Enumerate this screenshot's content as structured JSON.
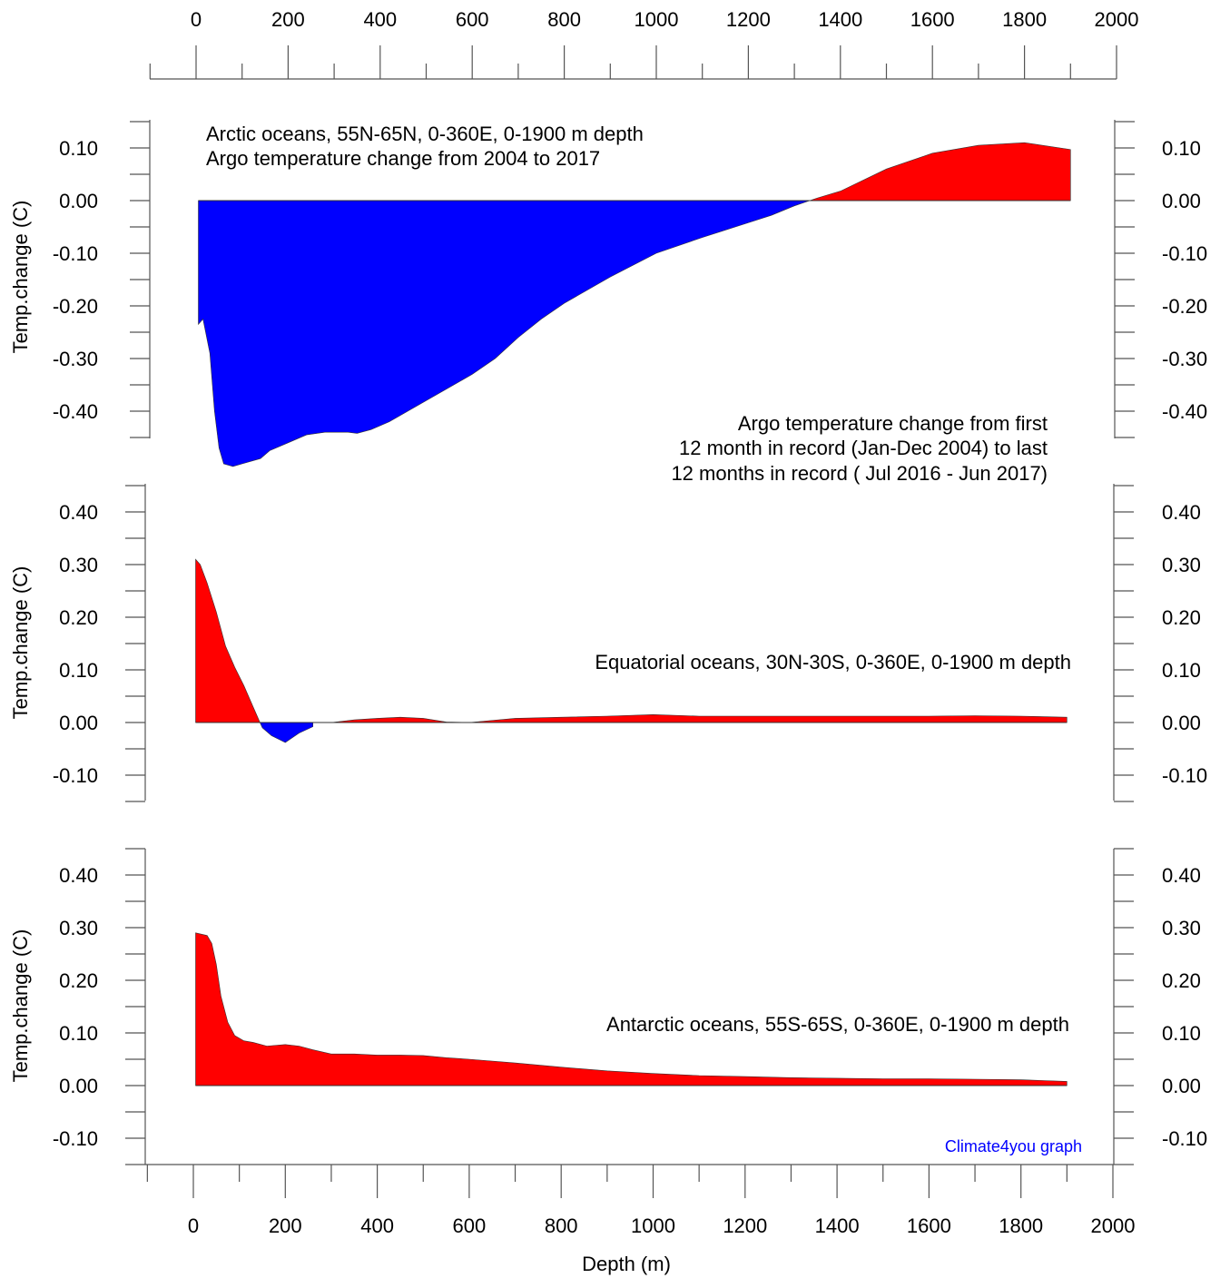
{
  "chart_data": {
    "type": "area",
    "xlabel": "Depth (m)",
    "x_ticks": [
      "0",
      "200",
      "400",
      "600",
      "800",
      "1000",
      "1200",
      "1400",
      "1600",
      "1800",
      "2000"
    ],
    "xlim": [
      -100,
      2000
    ],
    "annotation": [
      "Argo temperature change from first",
      "12 month in record (Jan-Dec 2004) to last",
      "12 months in record ( Jul 2016 - Jun 2017)"
    ],
    "credit": "Climate4you graph",
    "positive_color": "#ff0000",
    "negative_color": "#0000ff",
    "panels": [
      {
        "title_lines": [
          "Arctic oceans, 55N-65N, 0-360E, 0-1900 m depth",
          "Argo temperature change from 2004 to 2017"
        ],
        "ylabel": "Temp.change (C)",
        "ylim": [
          -0.45,
          0.15
        ],
        "y_ticks_left": [
          "0.10",
          "0.00",
          "-0.10",
          "-0.20",
          "-0.30",
          "-0.40"
        ],
        "y_ticks_right": [
          "0.10",
          "0.00",
          "-0.10",
          "-0.20",
          "-0.30",
          "-0.40"
        ],
        "x": [
          5,
          15,
          30,
          40,
          50,
          60,
          80,
          100,
          140,
          160,
          200,
          240,
          280,
          330,
          350,
          380,
          420,
          460,
          500,
          550,
          600,
          650,
          700,
          750,
          800,
          900,
          1000,
          1100,
          1200,
          1250,
          1300,
          1350,
          1400,
          1500,
          1600,
          1700,
          1800,
          1900
        ],
        "values": [
          -0.235,
          -0.225,
          -0.29,
          -0.4,
          -0.47,
          -0.5,
          -0.505,
          -0.5,
          -0.49,
          -0.475,
          -0.46,
          -0.445,
          -0.44,
          -0.44,
          -0.442,
          -0.435,
          -0.42,
          -0.4,
          -0.38,
          -0.355,
          -0.33,
          -0.3,
          -0.26,
          -0.225,
          -0.195,
          -0.145,
          -0.1,
          -0.07,
          -0.042,
          -0.028,
          -0.01,
          0.005,
          0.018,
          0.06,
          0.09,
          0.105,
          0.11,
          0.097
        ]
      },
      {
        "title_lines": [
          "Equatorial oceans, 30N-30S, 0-360E, 0-1900 m depth"
        ],
        "ylabel": "Temp.change (C)",
        "ylim": [
          -0.15,
          0.45
        ],
        "y_ticks_left": [
          "0.40",
          "0.30",
          "0.20",
          "0.10",
          "0.00",
          "-0.10"
        ],
        "y_ticks_right": [
          "0.40",
          "0.30",
          "0.20",
          "0.10",
          "0.00",
          "-0.10"
        ],
        "x": [
          5,
          15,
          30,
          50,
          70,
          90,
          110,
          130,
          150,
          170,
          200,
          230,
          260,
          300,
          350,
          400,
          450,
          500,
          550,
          600,
          700,
          800,
          900,
          1000,
          1100,
          1200,
          1300,
          1400,
          1500,
          1600,
          1700,
          1800,
          1900
        ],
        "values": [
          0.31,
          0.3,
          0.265,
          0.21,
          0.145,
          0.105,
          0.07,
          0.03,
          -0.01,
          -0.025,
          -0.038,
          -0.02,
          -0.008,
          0.0,
          0.005,
          0.008,
          0.01,
          0.008,
          0.001,
          0.0,
          0.008,
          0.01,
          0.012,
          0.015,
          0.012,
          0.012,
          0.012,
          0.012,
          0.012,
          0.012,
          0.013,
          0.012,
          0.01
        ]
      },
      {
        "title_lines": [
          "Antarctic oceans, 55S-65S, 0-360E, 0-1900 m depth"
        ],
        "ylabel": "Temp.change (C)",
        "ylim": [
          -0.15,
          0.45
        ],
        "y_ticks_left": [
          "0.40",
          "0.30",
          "0.20",
          "0.10",
          "0.00",
          "-0.10"
        ],
        "y_ticks_right": [
          "0.40",
          "0.30",
          "0.20",
          "0.10",
          "0.00",
          "-0.10"
        ],
        "x": [
          5,
          30,
          40,
          50,
          60,
          75,
          90,
          110,
          130,
          160,
          200,
          230,
          260,
          300,
          350,
          400,
          450,
          500,
          550,
          600,
          700,
          800,
          900,
          1000,
          1100,
          1200,
          1300,
          1400,
          1500,
          1600,
          1700,
          1800,
          1900
        ],
        "values": [
          0.29,
          0.285,
          0.27,
          0.23,
          0.17,
          0.12,
          0.095,
          0.085,
          0.082,
          0.075,
          0.078,
          0.075,
          0.068,
          0.06,
          0.06,
          0.058,
          0.058,
          0.057,
          0.053,
          0.05,
          0.043,
          0.035,
          0.028,
          0.023,
          0.019,
          0.017,
          0.015,
          0.014,
          0.013,
          0.013,
          0.012,
          0.011,
          0.008
        ]
      }
    ]
  }
}
